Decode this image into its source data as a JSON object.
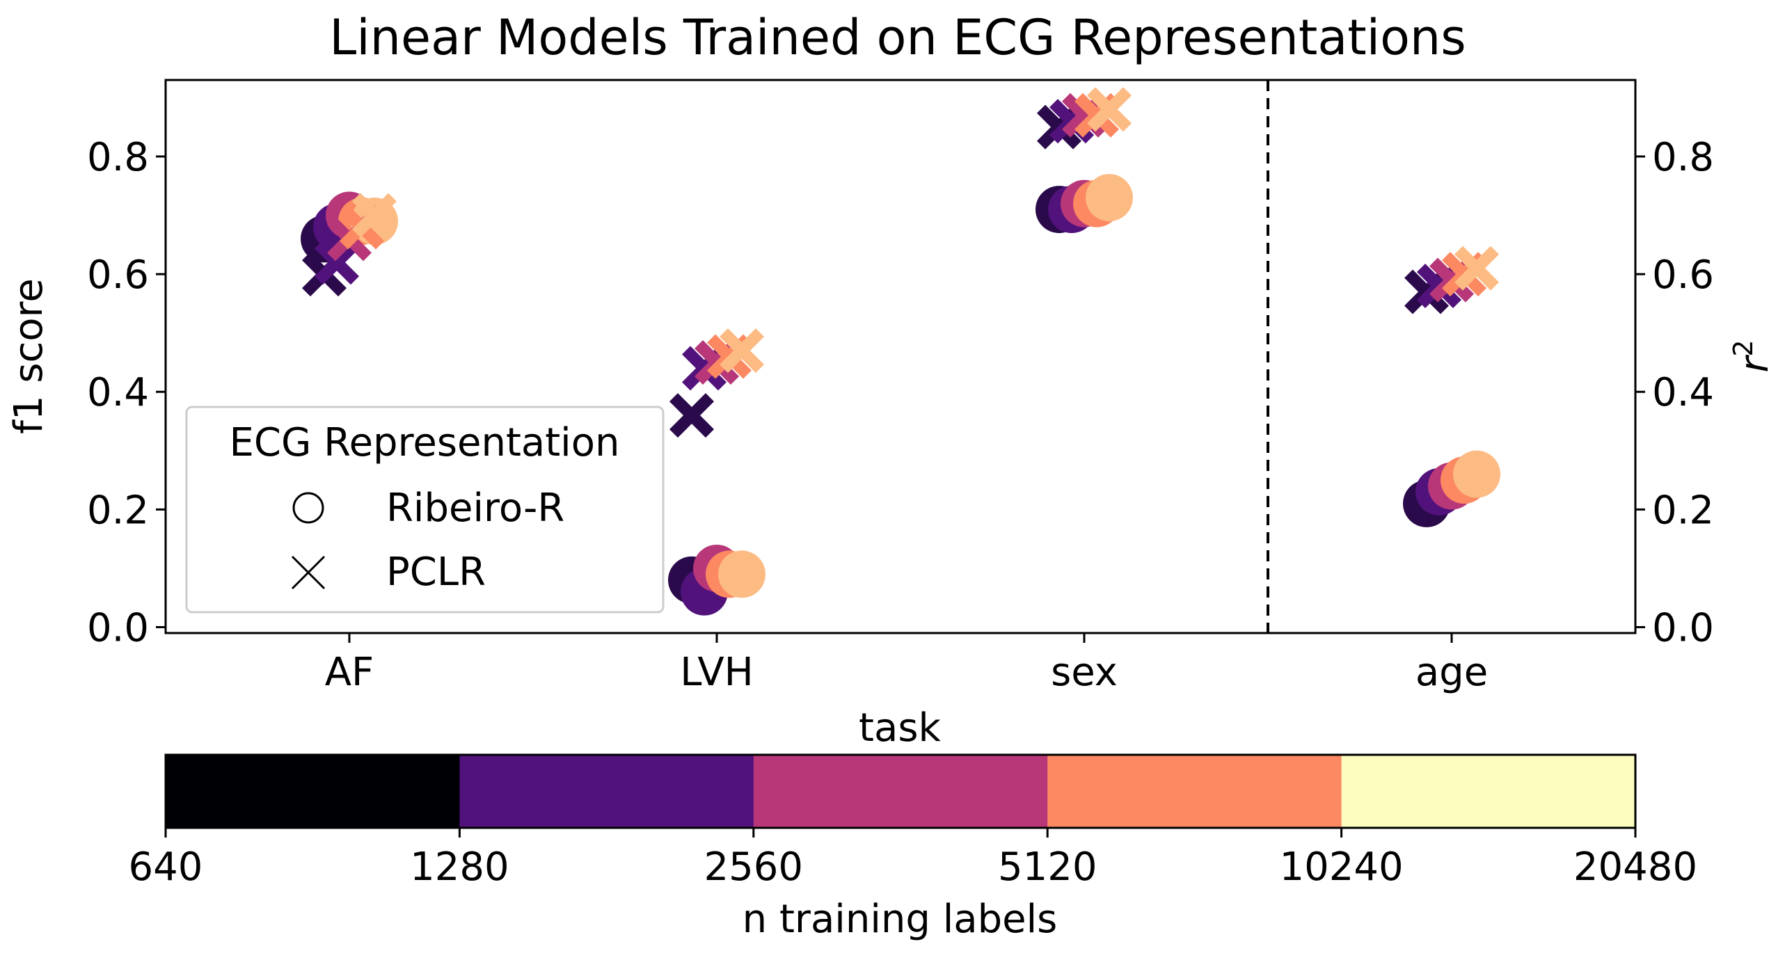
{
  "chart_data": {
    "type": "scatter",
    "title": "Linear Models Trained on ECG Representations",
    "xlabel": "task",
    "ylabel_left": "f1 score",
    "ylabel_right": "r",
    "ylabel_right_sup": "2",
    "categories": [
      "AF",
      "LVH",
      "sex",
      "age"
    ],
    "ylim": [
      -0.01,
      0.93
    ],
    "yticks": [
      0.0,
      0.2,
      0.4,
      0.6,
      0.8
    ],
    "ytick_labels": [
      "0.0",
      "0.2",
      "0.4",
      "0.6",
      "0.8"
    ],
    "divider_between": [
      "sex",
      "age"
    ],
    "grid": false,
    "legend": {
      "title": "ECG Representation",
      "placement": "lower-left",
      "entries": [
        {
          "label": "Ribeiro-R",
          "marker": "circle"
        },
        {
          "label": "PCLR",
          "marker": "x"
        }
      ]
    },
    "colorbar": {
      "label": "n training labels",
      "ticks": [
        "640",
        "1280",
        "2560",
        "5120",
        "10240",
        "20480"
      ],
      "colors": [
        "#000004",
        "#51127c",
        "#b73779",
        "#fc8961",
        "#fcfdbf"
      ]
    },
    "n_labels": [
      640,
      1280,
      2560,
      5120,
      10240
    ],
    "point_colors": [
      "#2a0a4a",
      "#51127c",
      "#b73779",
      "#fc8961",
      "#fdbb84"
    ],
    "series": [
      {
        "name": "Ribeiro-R",
        "marker": "circle",
        "values": {
          "AF": [
            0.66,
            0.68,
            0.7,
            0.69,
            0.69
          ],
          "LVH": [
            0.08,
            0.06,
            0.1,
            0.09,
            0.09
          ],
          "sex": [
            0.71,
            0.71,
            0.72,
            0.72,
            0.73
          ],
          "age": [
            0.21,
            0.23,
            0.24,
            0.25,
            0.26
          ]
        }
      },
      {
        "name": "PCLR",
        "marker": "x",
        "values": {
          "AF": [
            0.6,
            0.62,
            0.66,
            0.68,
            0.7
          ],
          "LVH": [
            0.36,
            0.44,
            0.45,
            0.46,
            0.47
          ],
          "sex": [
            0.85,
            0.86,
            0.87,
            0.87,
            0.88
          ],
          "age": [
            0.57,
            0.58,
            0.59,
            0.6,
            0.61
          ]
        }
      }
    ]
  }
}
